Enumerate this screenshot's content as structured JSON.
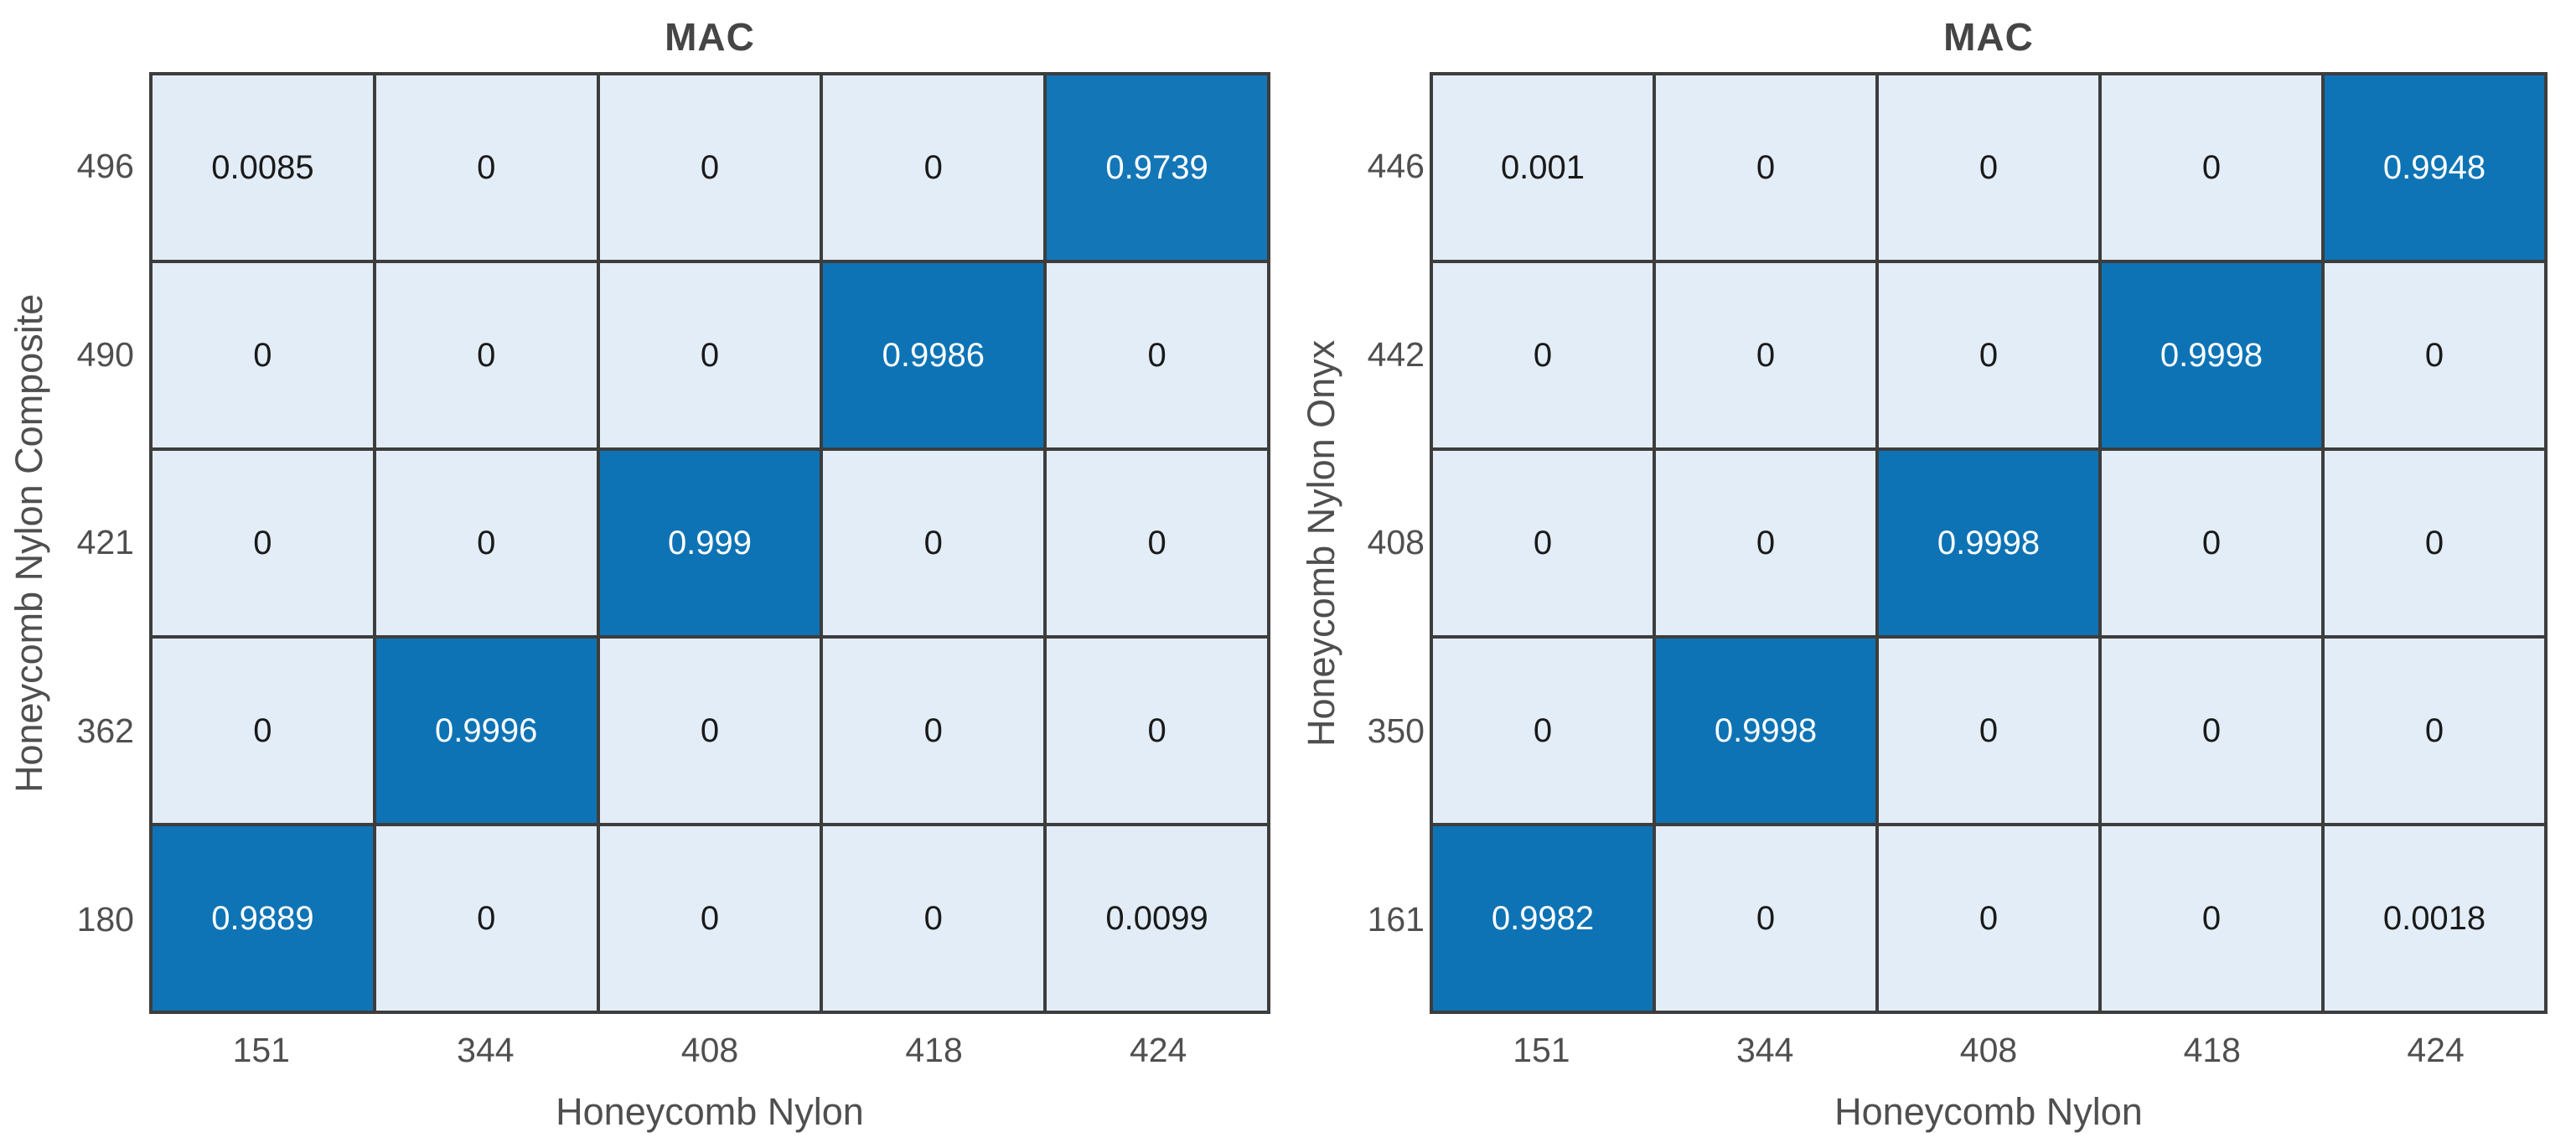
{
  "style": {
    "background": "#ffffff",
    "grid_line_color": "#3d3d3d",
    "cell_low_color": "#e3edf7",
    "cell_high_color": "#0d73b5",
    "label_color": "#4f4f4f",
    "title_color": "#454545",
    "cell_text_on_dark": "#ffffff",
    "cell_text_on_light": "#1a1a1a"
  },
  "chart_data": [
    {
      "type": "heatmap",
      "title": "MAC",
      "xlabel": "Honeycomb Nylon",
      "ylabel": "Honeycomb Nylon Composite",
      "x_labels": [
        "151",
        "344",
        "408",
        "418",
        "424"
      ],
      "y_labels": [
        "496",
        "490",
        "421",
        "362",
        "180"
      ],
      "values": [
        [
          0.0085,
          0,
          0,
          0,
          0.9739
        ],
        [
          0,
          0,
          0,
          0.9986,
          0
        ],
        [
          0,
          0,
          0.999,
          0,
          0
        ],
        [
          0,
          0.9996,
          0,
          0,
          0
        ],
        [
          0.9889,
          0,
          0,
          0,
          0.0099
        ]
      ],
      "vmin": 0,
      "vmax": 1,
      "legend_position": "none",
      "grid": "on"
    },
    {
      "type": "heatmap",
      "title": "MAC",
      "xlabel": "Honeycomb Nylon",
      "ylabel": "Honeycomb Nylon Onyx",
      "x_labels": [
        "151",
        "344",
        "408",
        "418",
        "424"
      ],
      "y_labels": [
        "446",
        "442",
        "408",
        "350",
        "161"
      ],
      "values": [
        [
          0.001,
          0,
          0,
          0,
          0.9948
        ],
        [
          0,
          0,
          0,
          0.9998,
          0
        ],
        [
          0,
          0,
          0.9998,
          0,
          0
        ],
        [
          0,
          0.9998,
          0,
          0,
          0
        ],
        [
          0.9982,
          0,
          0,
          0,
          0.0018
        ]
      ],
      "vmin": 0,
      "vmax": 1,
      "legend_position": "none",
      "grid": "on"
    }
  ]
}
